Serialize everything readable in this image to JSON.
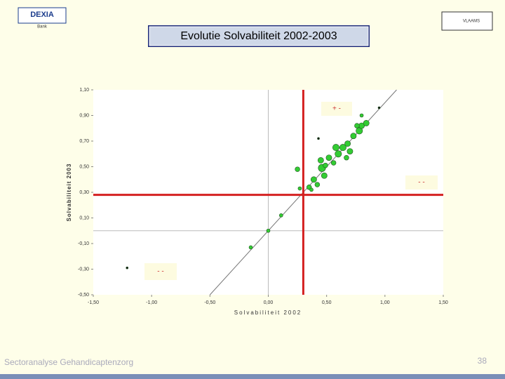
{
  "header": {
    "logo_left": "DEXIA",
    "logo_left_sub": "Bank",
    "logo_right": "VLAAMS"
  },
  "footer": {
    "text": "Sectoranalyse Gehandicaptenzorg",
    "page": "38"
  },
  "chart_data": {
    "type": "scatter",
    "title": "Evolutie Solvabiliteit 2002-2003",
    "x_label": "Solvabiliteit 2002",
    "y_label": "Solvabiliteit 2003",
    "xlim": [
      -1.5,
      1.5
    ],
    "xticks": [
      {
        "value": -1.5,
        "label": "-1,50"
      },
      {
        "value": -1,
        "label": "-1,00"
      },
      {
        "value": -0.5,
        "label": "-0,50"
      },
      {
        "value": 0,
        "label": "0,00"
      },
      {
        "value": 0.5,
        "label": "0,50"
      },
      {
        "value": 1,
        "label": "1,00"
      },
      {
        "value": 1.5,
        "label": "1,50"
      }
    ],
    "ylim": [
      -0.5,
      1.1
    ],
    "yticks": [
      {
        "value": -0.5,
        "label": "-0,50"
      },
      {
        "value": -0.3,
        "label": "-0,30"
      },
      {
        "value": -0.1,
        "label": "-0,10"
      },
      {
        "value": 0.1,
        "label": "0,10"
      },
      {
        "value": 0.3,
        "label": "0,30"
      },
      {
        "value": 0.5,
        "label": "0,50"
      },
      {
        "value": 0.7,
        "label": "0,70"
      },
      {
        "value": 0.9,
        "label": "0,90"
      },
      {
        "value": 1.1,
        "label": "1,10"
      }
    ],
    "reference_lines": {
      "x": 0.3,
      "y": 0.28,
      "color": "#d42020"
    },
    "annotations": [
      "+ -",
      "- -",
      "- -"
    ],
    "series": [
      {
        "color": "#33cc33",
        "x": [
          -0.15,
          0,
          0.11,
          0.27,
          0.25,
          0.8,
          0.35,
          0.39,
          0.42,
          0.46,
          0.48,
          0.45,
          0.52,
          0.56,
          0.6,
          0.64,
          0.68,
          0.7,
          0.73,
          0.78,
          0.8,
          0.84,
          0.76,
          0.67,
          0.58,
          0.49,
          0.37
        ],
        "values": [
          -0.13,
          0,
          0.12,
          0.33,
          0.48,
          0.9,
          0.34,
          0.4,
          0.36,
          0.49,
          0.43,
          0.55,
          0.57,
          0.53,
          0.6,
          0.65,
          0.68,
          0.62,
          0.74,
          0.78,
          0.82,
          0.84,
          0.82,
          0.57,
          0.65,
          0.51,
          0.32
        ],
        "sizes": [
          1,
          1,
          1,
          1,
          2,
          1,
          2,
          3,
          2,
          5,
          3,
          3,
          3,
          2,
          4,
          4,
          3,
          3,
          3,
          4,
          3,
          3,
          2,
          2,
          4,
          2,
          1
        ]
      },
      {
        "color": "#111111",
        "x": [
          -1.21,
          0.43,
          0.95
        ],
        "values": [
          -0.29,
          0.72,
          0.96
        ],
        "sizes": [
          0.3,
          0.3,
          0.3
        ]
      }
    ]
  }
}
